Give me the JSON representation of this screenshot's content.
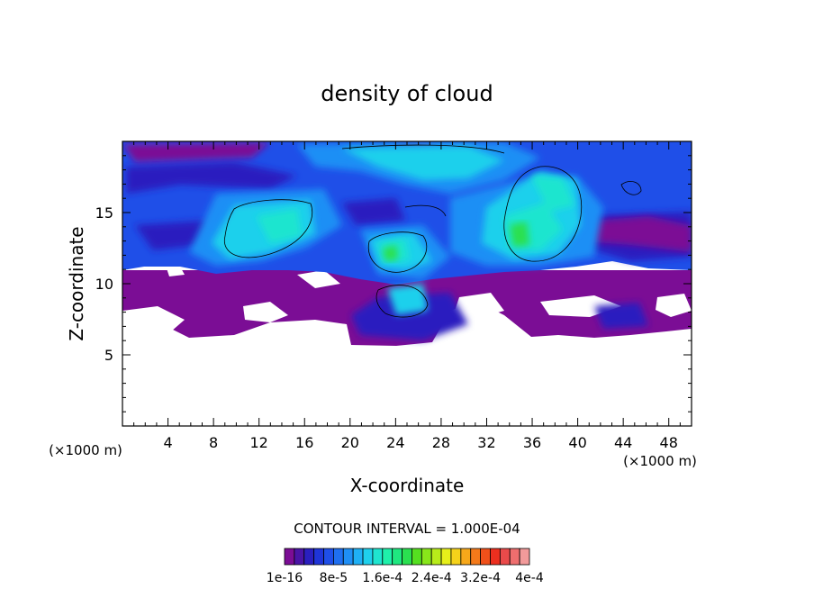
{
  "chart_data": {
    "type": "heatmap",
    "title": "density of cloud",
    "xlabel": "X-coordinate",
    "ylabel": "Z-coordinate",
    "x_unit": "(×1000 m)",
    "y_unit": "(×1000 m)",
    "xlim": [
      0,
      50
    ],
    "ylim": [
      0,
      20
    ],
    "x_ticks": [
      4,
      8,
      12,
      16,
      20,
      24,
      28,
      32,
      36,
      40,
      44,
      48
    ],
    "y_ticks": [
      5,
      10,
      15
    ],
    "contour_interval_label": "CONTOUR INTERVAL = 1.000E-04",
    "colorbar": {
      "min": 1e-16,
      "max": 0.0004,
      "tick_labels": [
        "1e-16",
        "8e-5",
        "1.6e-4",
        "2.4e-4",
        "3.2e-4",
        "4e-4"
      ],
      "colors": [
        "#7b0d95",
        "#4a14a6",
        "#2a1fbf",
        "#1f35d8",
        "#1f4fe8",
        "#1f6ff0",
        "#1f8ff5",
        "#1fb0f5",
        "#1fd0ec",
        "#1fe5cf",
        "#1ff0aa",
        "#1fe880",
        "#2ae050",
        "#55e020",
        "#88e61a",
        "#b8ec1a",
        "#e6ef1a",
        "#f5d21a",
        "#f7a81a",
        "#f47a1a",
        "#f0501a",
        "#ec2f1f",
        "#ea4a4a",
        "#ee6e6e",
        "#f29a9a"
      ]
    },
    "notes": "Cloud layer spans roughly Z = 6–20 km; densest region near x = 34 km, z = 13–17 km."
  }
}
